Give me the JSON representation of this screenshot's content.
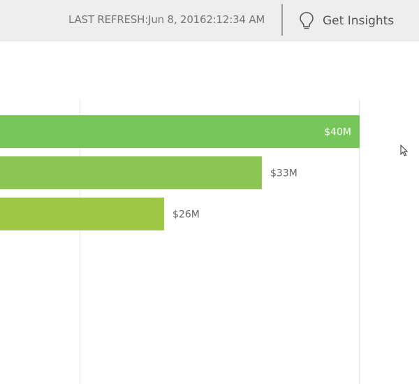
{
  "header": {
    "last_refresh": "LAST REFRESH:Jun 8, 20162:12:34 AM",
    "insights_label": "Get Insights",
    "insights_icon": "lightbulb-icon"
  },
  "colors": {
    "bar_1": "#77c65a",
    "bar_2": "#8bc655",
    "bar_3": "#9ec745",
    "label_inside": "#ffffff",
    "label_outside": "#666666",
    "gridline": "#e8e8e8"
  },
  "chart_data": {
    "type": "bar",
    "orientation": "horizontal",
    "series": [
      {
        "values": [
          40,
          33,
          26
        ]
      }
    ],
    "data_labels": [
      "$40M",
      "$33M",
      "$26M"
    ],
    "gridlines": [
      20,
      40
    ],
    "grid": true
  },
  "pointer": {
    "icon": "mouse-cursor-icon"
  }
}
